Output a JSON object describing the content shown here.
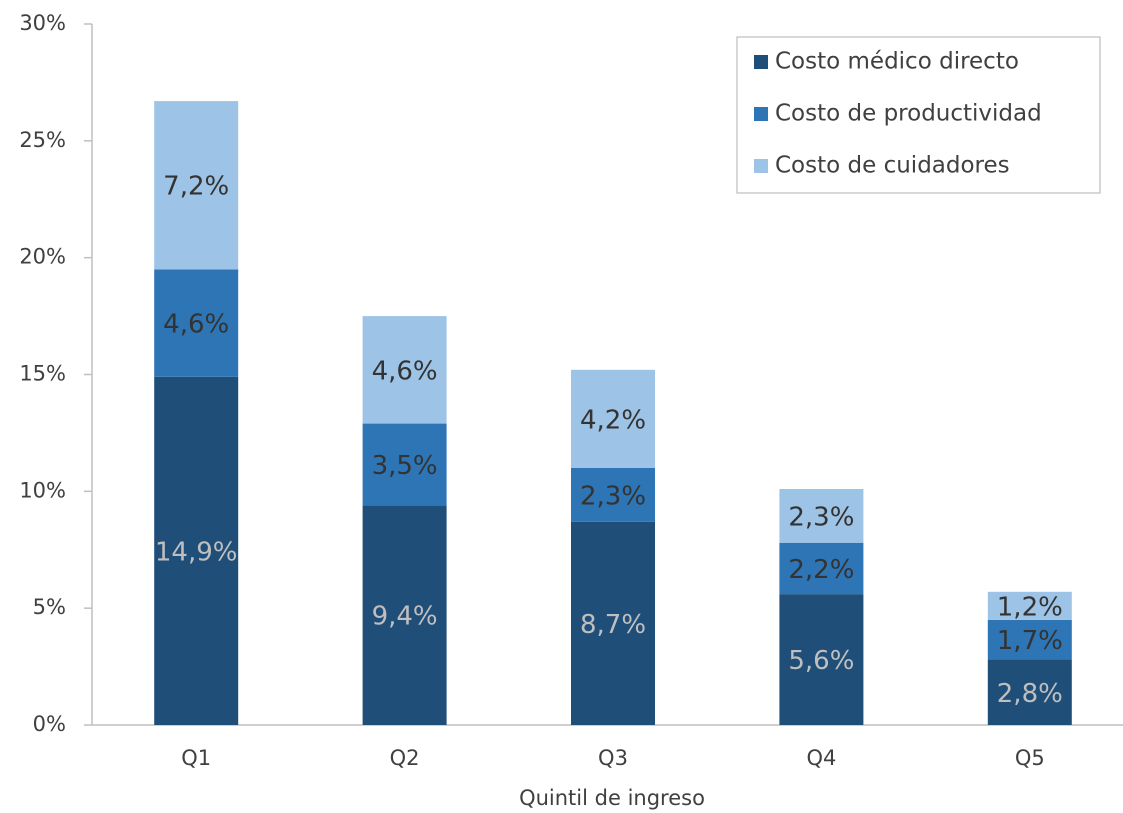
{
  "chart_data": {
    "type": "stacked_bar",
    "x_label": "Quintil de ingreso",
    "categories": [
      "Q1",
      "Q2",
      "Q3",
      "Q4",
      "Q5"
    ],
    "series": [
      {
        "name": "Costo médico directo",
        "color": "#1f4e79",
        "label_color": "#bfbfbf",
        "values": [
          14.9,
          9.4,
          8.7,
          5.6,
          2.8
        ],
        "value_labels": [
          "14,9%",
          "9,4%",
          "8,7%",
          "5,6%",
          "2,8%"
        ]
      },
      {
        "name": "Costo de productividad",
        "color": "#2e75b6",
        "label_color": "#333333",
        "values": [
          4.6,
          3.5,
          2.3,
          2.2,
          1.7
        ],
        "value_labels": [
          "4,6%",
          "3,5%",
          "2,3%",
          "2,2%",
          "1,7%"
        ]
      },
      {
        "name": "Costo de cuidadores",
        "color": "#9dc3e6",
        "label_color": "#333333",
        "values": [
          7.2,
          4.6,
          4.2,
          2.3,
          1.2
        ],
        "value_labels": [
          "7,2%",
          "4,6%",
          "4,2%",
          "2,3%",
          "1,2%"
        ]
      }
    ],
    "ylim": [
      0,
      30
    ],
    "yticks": [
      {
        "value": 0,
        "label": "0%"
      },
      {
        "value": 5,
        "label": "5%"
      },
      {
        "value": 10,
        "label": "10%"
      },
      {
        "value": 15,
        "label": "15%"
      },
      {
        "value": 20,
        "label": "20%"
      },
      {
        "value": 25,
        "label": "25%"
      },
      {
        "value": 30,
        "label": "30%"
      }
    ],
    "grid": false,
    "legend_position": "upper right"
  }
}
